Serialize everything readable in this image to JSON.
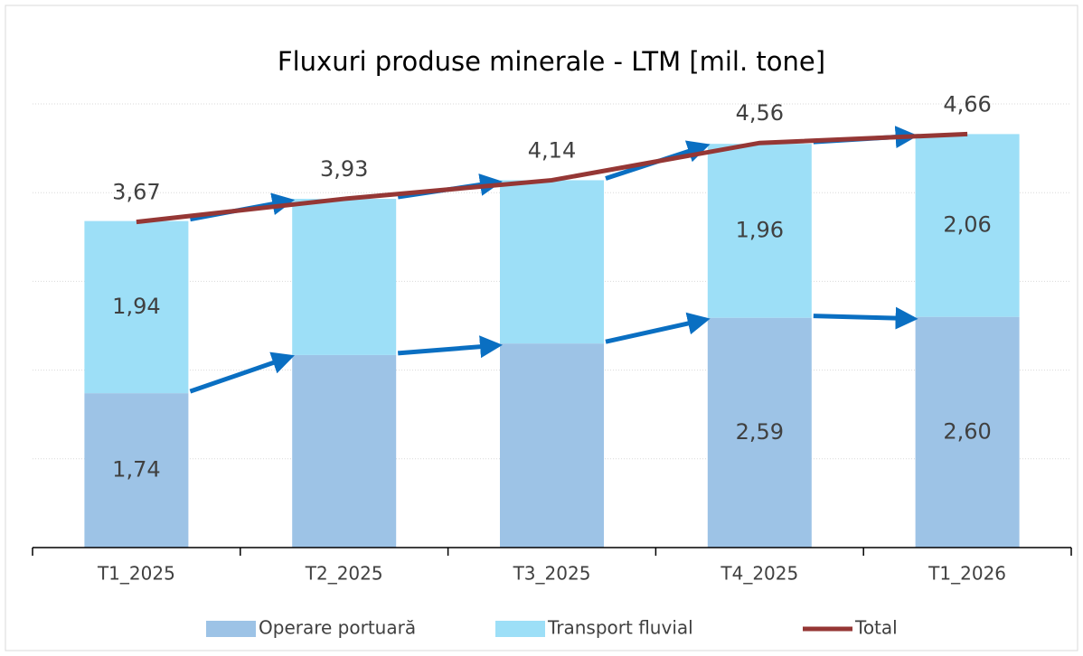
{
  "chart_data": {
    "type": "bar",
    "stacked": true,
    "title": "Fluxuri produse minerale - LTM [mil. tone]",
    "categories": [
      "T1_2025",
      "T2_2025",
      "T3_2025",
      "T4_2025",
      "T1_2026"
    ],
    "series": [
      {
        "name": "Operare portuară",
        "color": "#9dc3e6",
        "values": [
          1.74,
          2.17,
          2.3,
          2.59,
          2.6
        ],
        "value_labels": [
          "1,74",
          null,
          null,
          "2,59",
          "2,60"
        ]
      },
      {
        "name": "Transport fluvial",
        "color": "#9ddff7",
        "values": [
          1.94,
          1.76,
          1.84,
          1.96,
          2.06
        ],
        "value_labels": [
          "1,94",
          null,
          null,
          "1,96",
          "2,06"
        ]
      },
      {
        "name": "Total",
        "type": "line",
        "color": "#953735",
        "values": [
          3.67,
          3.93,
          4.14,
          4.56,
          4.66
        ],
        "value_labels": [
          "3,67",
          "3,93",
          "4,14",
          "4,56",
          "4,66"
        ]
      }
    ],
    "ylim": [
      0,
      5
    ],
    "yticks": [
      0,
      1,
      2,
      3,
      4,
      5
    ],
    "grid": true,
    "legend": "bottom"
  }
}
